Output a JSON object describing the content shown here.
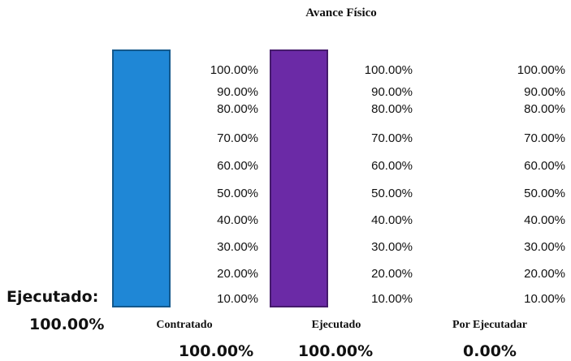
{
  "chart_data": {
    "type": "bar",
    "title": "Avance Físico",
    "categories": [
      "Contratado",
      "Ejecutado",
      "Por Ejecutadar"
    ],
    "values": [
      100,
      100,
      0
    ],
    "value_labels": [
      "100.00%",
      "100.00%",
      "0.00%"
    ],
    "tick_labels": [
      "100.00%",
      "90.00%",
      "80.00%",
      "70.00%",
      "60.00%",
      "50.00%",
      "40.00%",
      "30.00%",
      "20.00%",
      "10.00%"
    ],
    "ylim": [
      0,
      100
    ],
    "colors": [
      "#1f87d6",
      "#6b2aa6",
      "#ffffff"
    ],
    "summary_label": "Ejecutado:",
    "summary_value": "100.00%"
  }
}
